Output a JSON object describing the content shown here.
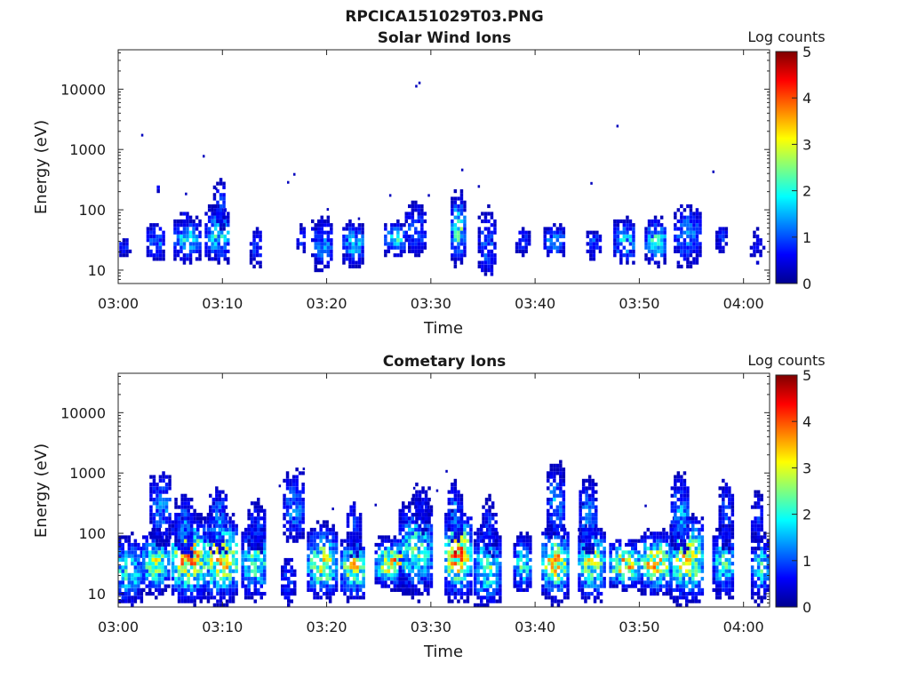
{
  "figure_title": "RPCICA151029T03.PNG",
  "colormap": "jet",
  "chart_data": [
    {
      "type": "heatmap",
      "title": "Solar Wind Ions",
      "xlabel": "Time",
      "ylabel": "Energy (eV)",
      "y_scale": "log",
      "ylim": [
        6,
        45000
      ],
      "xlim_minutes": [
        0,
        62.5
      ],
      "x_tick_labels": [
        "03:00",
        "03:10",
        "03:20",
        "03:30",
        "03:40",
        "03:50",
        "04:00"
      ],
      "x_tick_minutes": [
        0,
        10,
        20,
        30,
        40,
        50,
        60
      ],
      "y_tick_labels": [
        "10",
        "100",
        "1000",
        "10000"
      ],
      "y_tick_values": [
        10,
        100,
        1000,
        10000
      ],
      "colorbar": {
        "label": "Log counts",
        "range": [
          0,
          5
        ],
        "ticks": [
          "0",
          "1",
          "2",
          "3",
          "4",
          "5"
        ]
      },
      "cell_minutes": 0.3,
      "clusters": [
        {
          "t": 0.4,
          "e": 22,
          "dt": 0.6,
          "sigma": 0.12,
          "peak": 0.7
        },
        {
          "t": 3.5,
          "e": 27,
          "dt": 0.8,
          "sigma": 0.18,
          "peak": 1.2
        },
        {
          "t": 3.7,
          "e": 220,
          "dt": 0.3,
          "sigma": 0.1,
          "peak": 0.4
        },
        {
          "t": 6.5,
          "e": 30,
          "dt": 1.2,
          "sigma": 0.2,
          "peak": 1.6
        },
        {
          "t": 6.3,
          "e": 70,
          "dt": 0.4,
          "sigma": 0.1,
          "peak": 0.6
        },
        {
          "t": 9.5,
          "e": 35,
          "dt": 1.2,
          "sigma": 0.25,
          "peak": 1.7
        },
        {
          "t": 9.7,
          "e": 120,
          "dt": 0.6,
          "sigma": 0.25,
          "peak": 0.9
        },
        {
          "t": 13.2,
          "e": 22,
          "dt": 0.6,
          "sigma": 0.2,
          "peak": 0.9
        },
        {
          "t": 17.5,
          "e": 30,
          "dt": 0.4,
          "sigma": 0.15,
          "peak": 0.8
        },
        {
          "t": 19.5,
          "e": 25,
          "dt": 1.0,
          "sigma": 0.25,
          "peak": 1.2
        },
        {
          "t": 22.5,
          "e": 25,
          "dt": 1.0,
          "sigma": 0.2,
          "peak": 1.5
        },
        {
          "t": 26.5,
          "e": 30,
          "dt": 1.0,
          "sigma": 0.15,
          "peak": 1.7
        },
        {
          "t": 28.5,
          "e": 45,
          "dt": 1.0,
          "sigma": 0.25,
          "peak": 1.1
        },
        {
          "t": 32.5,
          "e": 45,
          "dt": 0.6,
          "sigma": 0.3,
          "peak": 2.2
        },
        {
          "t": 35.3,
          "e": 25,
          "dt": 0.8,
          "sigma": 0.35,
          "peak": 1.0
        },
        {
          "t": 38.7,
          "e": 28,
          "dt": 0.6,
          "sigma": 0.15,
          "peak": 0.8
        },
        {
          "t": 41.8,
          "e": 28,
          "dt": 1.0,
          "sigma": 0.15,
          "peak": 1.3
        },
        {
          "t": 45.5,
          "e": 25,
          "dt": 0.6,
          "sigma": 0.15,
          "peak": 1.0
        },
        {
          "t": 48.5,
          "e": 28,
          "dt": 1.0,
          "sigma": 0.2,
          "peak": 1.6
        },
        {
          "t": 51.5,
          "e": 28,
          "dt": 1.0,
          "sigma": 0.2,
          "peak": 1.8
        },
        {
          "t": 54.5,
          "e": 35,
          "dt": 1.2,
          "sigma": 0.3,
          "peak": 1.2
        },
        {
          "t": 57.8,
          "e": 30,
          "dt": 0.5,
          "sigma": 0.15,
          "peak": 0.8
        },
        {
          "t": 61.2,
          "e": 22,
          "dt": 0.6,
          "sigma": 0.2,
          "peak": 0.6
        }
      ],
      "points": [
        {
          "t": 2.2,
          "e": 1700,
          "v": 0.3
        },
        {
          "t": 8.1,
          "e": 760,
          "v": 0.3
        },
        {
          "t": 16.2,
          "e": 280,
          "v": 0.3
        },
        {
          "t": 16.8,
          "e": 380,
          "v": 0.3
        },
        {
          "t": 28.5,
          "e": 11000,
          "v": 0.3
        },
        {
          "t": 28.8,
          "e": 12500,
          "v": 0.3
        },
        {
          "t": 32.9,
          "e": 450,
          "v": 0.3
        },
        {
          "t": 34.5,
          "e": 240,
          "v": 0.3
        },
        {
          "t": 45.3,
          "e": 270,
          "v": 0.3
        },
        {
          "t": 47.8,
          "e": 2400,
          "v": 0.3
        },
        {
          "t": 57.0,
          "e": 420,
          "v": 0.3
        },
        {
          "t": 6.4,
          "e": 180,
          "v": 0.3
        },
        {
          "t": 9.3,
          "e": 220,
          "v": 0.3
        },
        {
          "t": 20.0,
          "e": 100,
          "v": 0.3
        },
        {
          "t": 26.0,
          "e": 170,
          "v": 0.3
        },
        {
          "t": 29.7,
          "e": 170,
          "v": 0.3
        },
        {
          "t": 8.9,
          "e": 100,
          "v": 0.3
        },
        {
          "t": 23.0,
          "e": 70,
          "v": 0.3
        }
      ]
    },
    {
      "type": "heatmap",
      "title": "Cometary Ions",
      "xlabel": "Time",
      "ylabel": "Energy (eV)",
      "y_scale": "log",
      "ylim": [
        6,
        45000
      ],
      "xlim_minutes": [
        0,
        62.5
      ],
      "x_tick_labels": [
        "03:00",
        "03:10",
        "03:20",
        "03:30",
        "03:40",
        "03:50",
        "04:00"
      ],
      "x_tick_minutes": [
        0,
        10,
        20,
        30,
        40,
        50,
        60
      ],
      "y_tick_labels": [
        "10",
        "100",
        "1000",
        "10000"
      ],
      "y_tick_values": [
        10,
        100,
        1000,
        10000
      ],
      "colorbar": {
        "label": "Log counts",
        "range": [
          0,
          5
        ],
        "ticks": [
          "0",
          "1",
          "2",
          "3",
          "4",
          "5"
        ]
      },
      "cell_minutes": 0.3,
      "clusters": [
        {
          "t": 0.8,
          "e": 22,
          "dt": 1.4,
          "sigma": 0.3,
          "peak": 1.8
        },
        {
          "t": 3.5,
          "e": 30,
          "dt": 1.2,
          "sigma": 0.25,
          "peak": 2.5
        },
        {
          "t": 4.0,
          "e": 250,
          "dt": 1.0,
          "sigma": 0.35,
          "peak": 1.2
        },
        {
          "t": 6.7,
          "e": 35,
          "dt": 1.6,
          "sigma": 0.35,
          "peak": 3.2
        },
        {
          "t": 6.2,
          "e": 120,
          "dt": 0.8,
          "sigma": 0.3,
          "peak": 1.2
        },
        {
          "t": 9.8,
          "e": 35,
          "dt": 1.6,
          "sigma": 0.35,
          "peak": 3.0
        },
        {
          "t": 9.5,
          "e": 150,
          "dt": 0.8,
          "sigma": 0.3,
          "peak": 1.3
        },
        {
          "t": 13.0,
          "e": 30,
          "dt": 1.2,
          "sigma": 0.3,
          "peak": 2.2
        },
        {
          "t": 13.2,
          "e": 120,
          "dt": 0.8,
          "sigma": 0.3,
          "peak": 0.8
        },
        {
          "t": 16.2,
          "e": 15,
          "dt": 0.6,
          "sigma": 0.25,
          "peak": 1.0
        },
        {
          "t": 16.8,
          "e": 250,
          "dt": 1.0,
          "sigma": 0.35,
          "peak": 1.2
        },
        {
          "t": 19.5,
          "e": 30,
          "dt": 1.4,
          "sigma": 0.3,
          "peak": 2.6
        },
        {
          "t": 22.5,
          "e": 25,
          "dt": 1.2,
          "sigma": 0.25,
          "peak": 2.8
        },
        {
          "t": 22.5,
          "e": 120,
          "dt": 0.6,
          "sigma": 0.3,
          "peak": 0.8
        },
        {
          "t": 26.2,
          "e": 30,
          "dt": 1.6,
          "sigma": 0.2,
          "peak": 3.0
        },
        {
          "t": 28.5,
          "e": 50,
          "dt": 1.6,
          "sigma": 0.4,
          "peak": 2.0
        },
        {
          "t": 29.0,
          "e": 250,
          "dt": 0.8,
          "sigma": 0.3,
          "peak": 0.6
        },
        {
          "t": 32.5,
          "e": 40,
          "dt": 1.2,
          "sigma": 0.35,
          "peak": 3.4
        },
        {
          "t": 32.2,
          "e": 200,
          "dt": 0.6,
          "sigma": 0.3,
          "peak": 1.2
        },
        {
          "t": 35.3,
          "e": 25,
          "dt": 1.2,
          "sigma": 0.35,
          "peak": 2.1
        },
        {
          "t": 35.5,
          "e": 120,
          "dt": 0.6,
          "sigma": 0.3,
          "peak": 0.8
        },
        {
          "t": 38.7,
          "e": 28,
          "dt": 0.8,
          "sigma": 0.25,
          "peak": 1.9
        },
        {
          "t": 41.8,
          "e": 30,
          "dt": 1.2,
          "sigma": 0.3,
          "peak": 3.0
        },
        {
          "t": 41.9,
          "e": 300,
          "dt": 0.8,
          "sigma": 0.35,
          "peak": 1.3
        },
        {
          "t": 45.3,
          "e": 30,
          "dt": 1.2,
          "sigma": 0.3,
          "peak": 2.6
        },
        {
          "t": 45.0,
          "e": 180,
          "dt": 0.8,
          "sigma": 0.35,
          "peak": 1.2
        },
        {
          "t": 48.5,
          "e": 28,
          "dt": 1.4,
          "sigma": 0.2,
          "peak": 3.0
        },
        {
          "t": 51.5,
          "e": 30,
          "dt": 1.4,
          "sigma": 0.25,
          "peak": 3.2
        },
        {
          "t": 54.5,
          "e": 35,
          "dt": 1.6,
          "sigma": 0.35,
          "peak": 2.8
        },
        {
          "t": 53.8,
          "e": 200,
          "dt": 0.8,
          "sigma": 0.35,
          "peak": 1.4
        },
        {
          "t": 58.0,
          "e": 30,
          "dt": 1.0,
          "sigma": 0.3,
          "peak": 1.9
        },
        {
          "t": 58.2,
          "e": 200,
          "dt": 0.6,
          "sigma": 0.35,
          "peak": 0.9
        },
        {
          "t": 61.5,
          "e": 25,
          "dt": 0.8,
          "sigma": 0.3,
          "peak": 1.8
        },
        {
          "t": 61.2,
          "e": 150,
          "dt": 0.5,
          "sigma": 0.3,
          "peak": 0.8
        }
      ],
      "points": [
        {
          "t": 17.7,
          "e": 1150,
          "v": 0.3
        },
        {
          "t": 31.4,
          "e": 1050,
          "v": 0.3
        },
        {
          "t": 28.3,
          "e": 550,
          "v": 0.3
        },
        {
          "t": 30.5,
          "e": 500,
          "v": 0.3
        },
        {
          "t": 24.6,
          "e": 290,
          "v": 0.3
        },
        {
          "t": 20.5,
          "e": 250,
          "v": 0.3
        },
        {
          "t": 44.5,
          "e": 300,
          "v": 0.3
        },
        {
          "t": 50.5,
          "e": 280,
          "v": 0.3
        },
        {
          "t": 15.4,
          "e": 600,
          "v": 0.3
        }
      ]
    }
  ]
}
